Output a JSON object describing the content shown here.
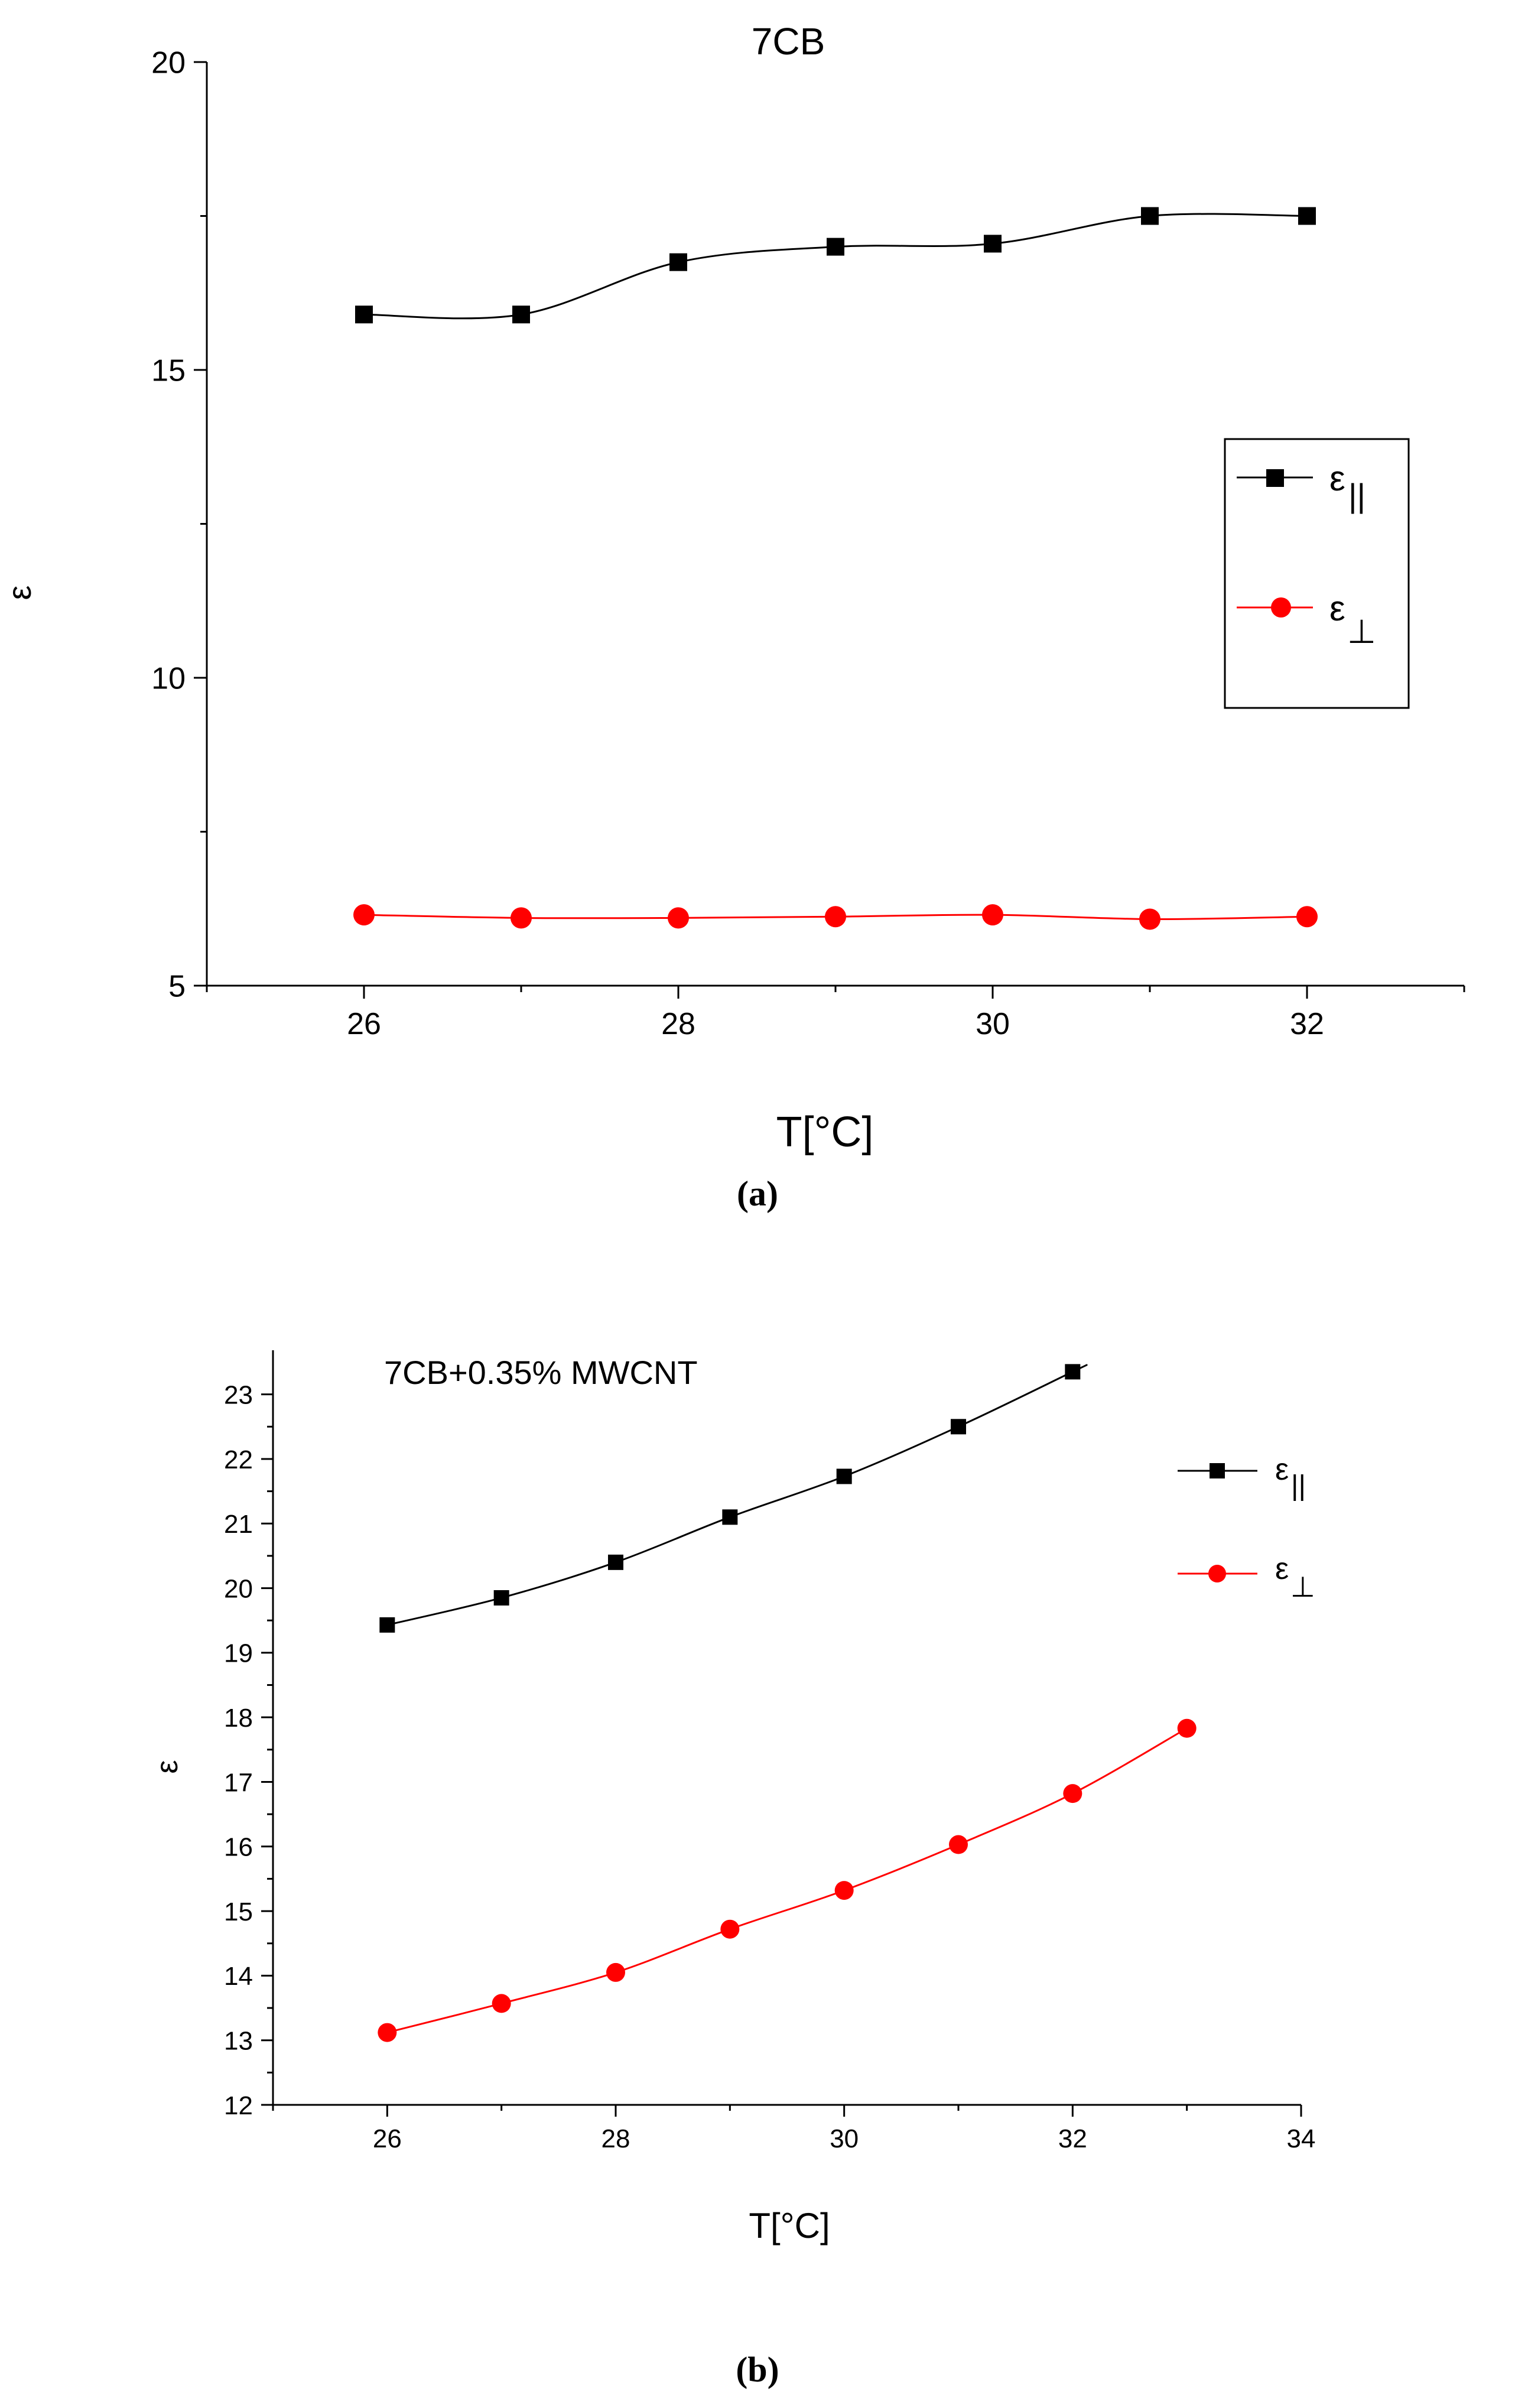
{
  "chart_data": [
    {
      "type": "line",
      "panel_label": "(a)",
      "title": "7CB",
      "xlabel": "T[°C]",
      "ylabel": "ε",
      "xlim": [
        25,
        33
      ],
      "ylim": [
        5,
        20
      ],
      "xticks": [
        "26",
        "28",
        "30",
        "32"
      ],
      "yticks": [
        "5",
        "10",
        "15",
        "20"
      ],
      "legend_position": "right",
      "x": [
        26,
        27,
        28,
        29,
        30,
        31,
        32
      ],
      "series": [
        {
          "name": "ε",
          "subscript": "||",
          "color": "#000000",
          "marker": "square",
          "values": [
            15.9,
            15.9,
            16.75,
            17.0,
            17.05,
            17.5,
            17.5
          ]
        },
        {
          "name": "ε",
          "subscript": "⊥",
          "color": "#ff0000",
          "marker": "circle",
          "values": [
            6.15,
            6.1,
            6.1,
            6.12,
            6.15,
            6.08,
            6.12
          ]
        }
      ]
    },
    {
      "type": "line",
      "panel_label": "(b)",
      "title": "7CB+0.35% MWCNT",
      "xlabel": "T[°C]",
      "ylabel": "ε",
      "xlim": [
        25,
        34
      ],
      "ylim": [
        12,
        23.5
      ],
      "xticks": [
        "26",
        "28",
        "30",
        "32",
        "34"
      ],
      "yticks": [
        "12",
        "13",
        "14",
        "15",
        "16",
        "17",
        "18",
        "19",
        "20",
        "21",
        "22",
        "23"
      ],
      "legend_position": "top-right",
      "series": [
        {
          "name": "ε",
          "subscript": "||",
          "color": "#000000",
          "marker": "square",
          "x": [
            26,
            27,
            28,
            29,
            30,
            31,
            32
          ],
          "values": [
            19.43,
            19.85,
            20.4,
            21.1,
            21.73,
            22.5,
            23.35
          ]
        },
        {
          "name": "ε",
          "subscript": "⊥",
          "color": "#ff0000",
          "marker": "circle",
          "x": [
            26,
            27,
            28,
            29,
            30,
            31,
            32,
            33
          ],
          "values": [
            13.12,
            13.57,
            14.05,
            14.72,
            15.32,
            16.03,
            16.82,
            17.83
          ]
        }
      ]
    }
  ]
}
